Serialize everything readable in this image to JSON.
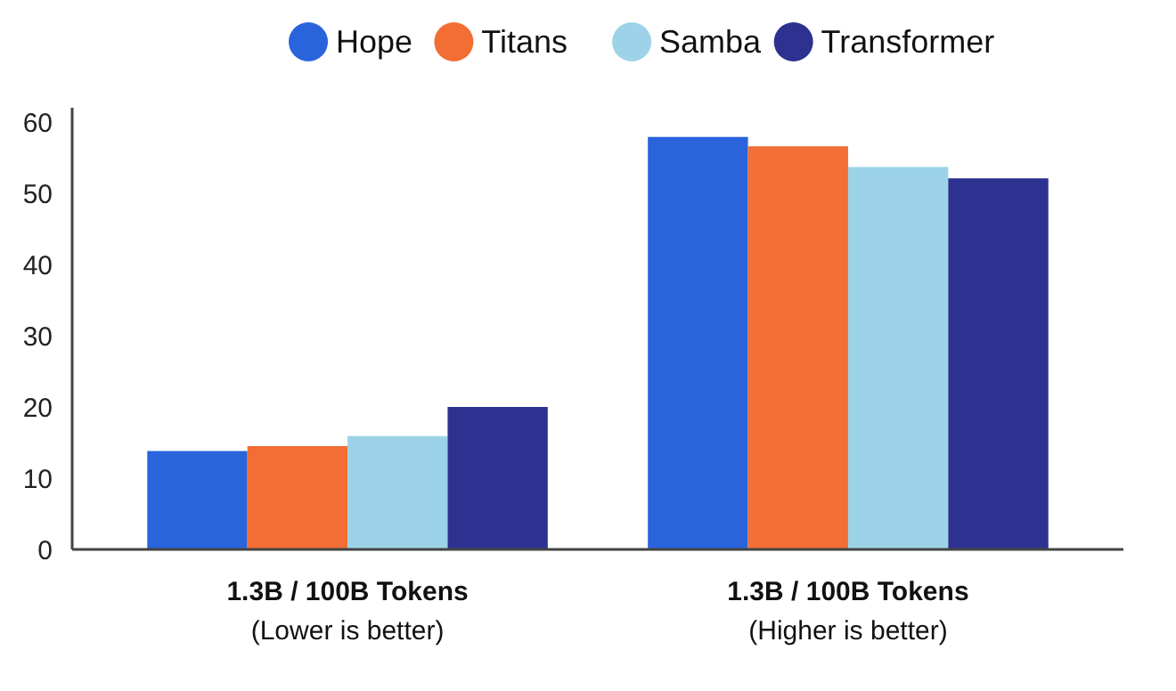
{
  "chart_data": {
    "type": "bar",
    "categories": [
      "1.3B / 100B Tokens\n(Lower is better)",
      "1.3B / 100B Tokens\n(Higher is better)"
    ],
    "series": [
      {
        "name": "Hope",
        "color": "#2a64dc",
        "values": [
          13.8,
          57.9
        ]
      },
      {
        "name": "Titans",
        "color": "#f26e35",
        "values": [
          14.5,
          56.6
        ]
      },
      {
        "name": "Samba",
        "color": "#9dd3e8",
        "values": [
          15.9,
          53.7
        ]
      },
      {
        "name": "Transformer",
        "color": "#2d3290",
        "values": [
          20.0,
          52.1
        ]
      }
    ],
    "ylim": [
      0,
      62
    ],
    "yticks": [
      0,
      10,
      20,
      30,
      40,
      50,
      60
    ],
    "grid": false,
    "legend": "top"
  }
}
